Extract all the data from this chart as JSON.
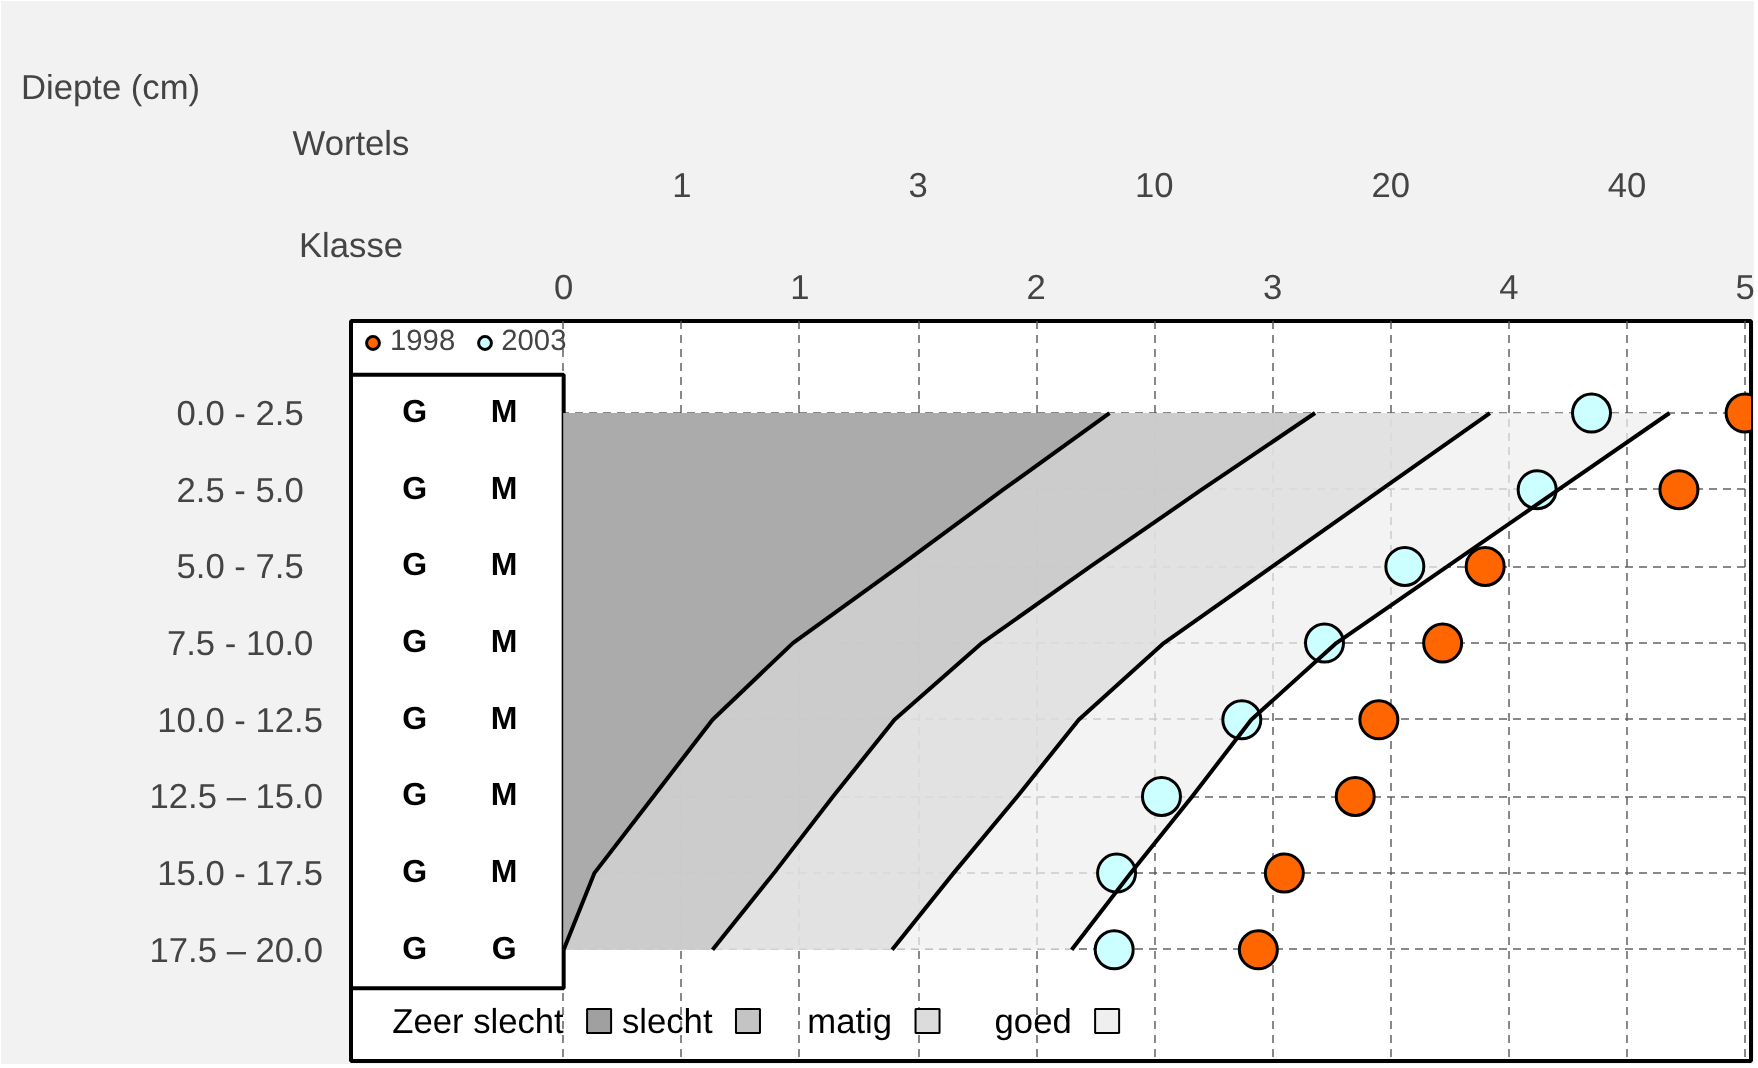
{
  "chart_data": {
    "type": "scatter",
    "orientation": "horizontal",
    "xlabel": "Klasse",
    "x2label": "Wortels",
    "ylabel": "Diepte (cm)",
    "annotations": [
      "1",
      "3",
      "10",
      "20",
      "40"
    ],
    "xlim": [
      0,
      5
    ],
    "xticks": [
      0,
      1,
      2,
      3,
      4,
      5
    ],
    "categories": [
      "0.0 -   2.5",
      "2.5 -   5.0",
      "5.0 -   7.5",
      "7.5 -  10.0",
      "10.0 - 12.5",
      "12.5 – 15.0",
      "15.0 - 17.5",
      "17.5 – 20.0"
    ],
    "grid": true,
    "legend": "top left",
    "series": [
      {
        "type": "area",
        "name": "goed",
        "color": "#efefef",
        "values": [
          4.68,
          4.21,
          3.74,
          3.27,
          2.91,
          2.66,
          2.4,
          2.15
        ]
      },
      {
        "type": "area",
        "name": "matig",
        "color": "#dcdcdc",
        "values": [
          3.92,
          3.46,
          3.0,
          2.54,
          2.18,
          1.92,
          1.65,
          1.39
        ]
      },
      {
        "type": "area",
        "name": "slecht",
        "color": "#c4c4c4",
        "values": [
          3.18,
          2.7,
          2.23,
          1.77,
          1.4,
          1.14,
          0.89,
          0.63
        ]
      },
      {
        "type": "area",
        "name": "Zeer slecht",
        "color": "#a0a0a0",
        "values": [
          2.31,
          1.86,
          1.42,
          0.97,
          0.63,
          0.38,
          0.13,
          0
        ]
      },
      {
        "name": "1998",
        "color": "#ff6600",
        "marker": "circle",
        "values": [
          5.0,
          4.72,
          3.9,
          3.72,
          3.45,
          3.35,
          3.05,
          2.94
        ],
        "value_labels": [
          "G",
          "G",
          "G",
          "G",
          "G",
          "G",
          "G",
          "G"
        ]
      },
      {
        "name": "2003",
        "color": "#ccffff",
        "marker": "circle",
        "values": [
          4.35,
          4.12,
          3.56,
          3.22,
          2.87,
          2.53,
          2.34,
          2.33
        ],
        "value_labels": [
          "M",
          "M",
          "M",
          "M",
          "M",
          "M",
          "M",
          "G"
        ]
      }
    ]
  }
}
